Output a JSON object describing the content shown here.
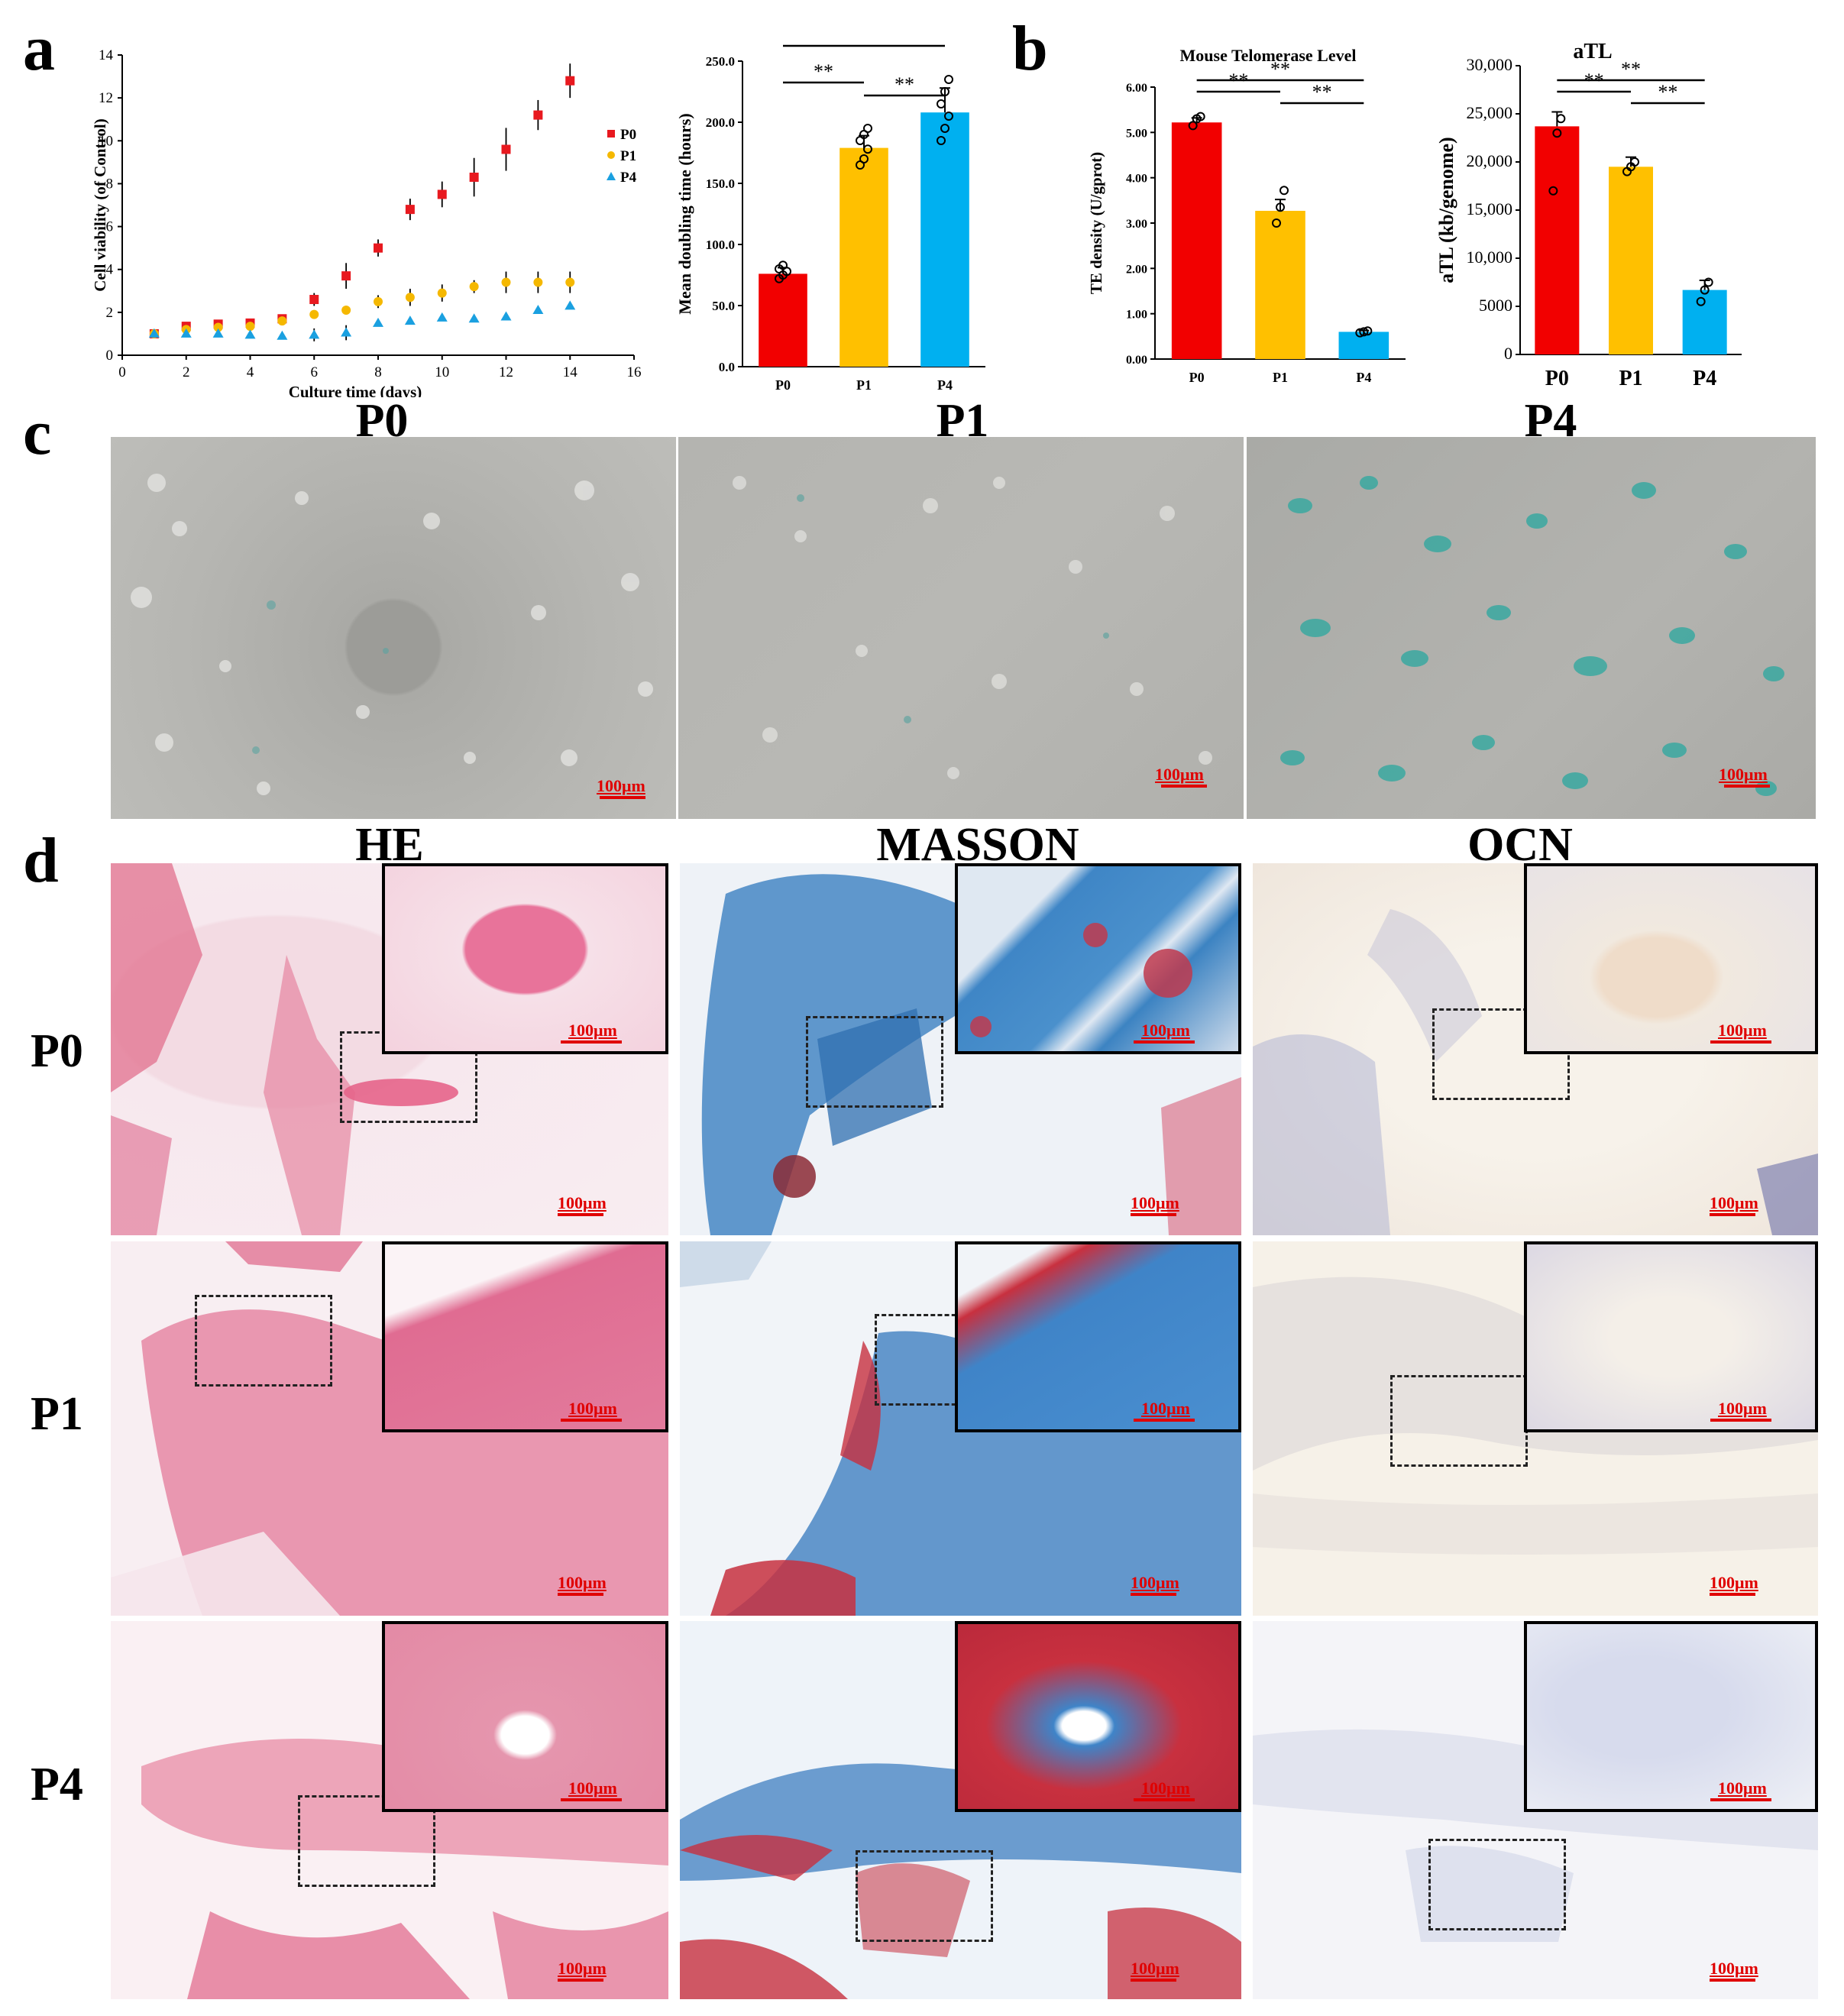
{
  "panel_letters": {
    "a": "a",
    "b": "b",
    "c": "c",
    "d": "d"
  },
  "chart_data": [
    {
      "id": "a1",
      "type": "scatter",
      "title": "",
      "xlabel": "Culture time (days)",
      "ylabel": "Cell viability (of Control)",
      "xlim": [
        0,
        16
      ],
      "ylim": [
        0,
        14
      ],
      "xticks": [
        "0",
        "2",
        "4",
        "6",
        "8",
        "10",
        "12",
        "14",
        "16"
      ],
      "yticks": [
        "0",
        "2",
        "4",
        "6",
        "8",
        "10",
        "12",
        "14"
      ],
      "legend": "right",
      "x": [
        1,
        2,
        3,
        4,
        5,
        6,
        7,
        8,
        9,
        10,
        11,
        12,
        13,
        14
      ],
      "series": [
        {
          "name": "P0",
          "color": "#e8191f",
          "marker": "square",
          "values": [
            1.0,
            1.35,
            1.45,
            1.5,
            1.7,
            2.6,
            3.7,
            5.0,
            6.8,
            7.5,
            8.3,
            9.6,
            11.2,
            12.8
          ],
          "errors": [
            0.1,
            0.15,
            0.1,
            0.15,
            0.15,
            0.3,
            0.6,
            0.4,
            0.5,
            0.6,
            0.9,
            1.0,
            0.7,
            0.8
          ]
        },
        {
          "name": "P1",
          "color": "#f5b800",
          "marker": "circle",
          "values": [
            1.0,
            1.2,
            1.3,
            1.35,
            1.6,
            1.9,
            2.1,
            2.5,
            2.7,
            2.9,
            3.2,
            3.4,
            3.4,
            3.4
          ],
          "errors": [
            0.1,
            0.1,
            0.1,
            0.15,
            0.1,
            0.2,
            0.2,
            0.3,
            0.4,
            0.4,
            0.3,
            0.5,
            0.5,
            0.5
          ]
        },
        {
          "name": "P4",
          "color": "#1aa0e0",
          "marker": "triangle",
          "values": [
            1.0,
            1.0,
            1.0,
            0.95,
            0.9,
            0.95,
            1.05,
            1.5,
            1.6,
            1.75,
            1.7,
            1.8,
            2.1,
            2.3
          ],
          "errors": [
            0.05,
            0.05,
            0.05,
            0.05,
            0.05,
            0.3,
            0.35,
            0.1,
            0.1,
            0.15,
            0.1,
            0.15,
            0.1,
            0.15
          ]
        }
      ]
    },
    {
      "id": "a2",
      "type": "bar",
      "title": "",
      "xlabel": "",
      "ylabel": "Mean doubling time (hours)",
      "categories": [
        "P0",
        "P1",
        "P4"
      ],
      "values": [
        76,
        179,
        208
      ],
      "errors": [
        5,
        10,
        20
      ],
      "points": [
        [
          72,
          75,
          78,
          80,
          83
        ],
        [
          165,
          170,
          178,
          185,
          190,
          195
        ],
        [
          185,
          195,
          205,
          215,
          225,
          235
        ]
      ],
      "colors": [
        "#f20000",
        "#ffc000",
        "#00b0f0"
      ],
      "ylim": [
        0,
        250
      ],
      "yticks": [
        "0.0",
        "50.0",
        "100.0",
        "150.0",
        "200.0",
        "250.0"
      ],
      "significance": [
        "**",
        "**",
        "**"
      ]
    },
    {
      "id": "b1",
      "type": "bar",
      "title": "Mouse Telomerase Level",
      "xlabel": "",
      "ylabel": "TE density (U/gprot)",
      "categories": [
        "P0",
        "P1",
        "P4"
      ],
      "values": [
        5.22,
        3.27,
        0.6
      ],
      "errors": [
        0.1,
        0.25,
        0.03
      ],
      "points": [
        [
          5.15,
          5.3,
          5.35
        ],
        [
          3.0,
          3.35,
          3.72
        ],
        [
          0.58,
          0.6,
          0.62
        ]
      ],
      "colors": [
        "#f20000",
        "#ffc000",
        "#00b0f0"
      ],
      "ylim": [
        0,
        6
      ],
      "yticks": [
        "0.00",
        "1.00",
        "2.00",
        "3.00",
        "4.00",
        "5.00",
        "6.00"
      ],
      "significance": [
        "**",
        "**",
        "**"
      ]
    },
    {
      "id": "b2",
      "type": "bar",
      "title": "aTL",
      "xlabel": "",
      "ylabel": "aTL (kb/genome)",
      "categories": [
        "P0",
        "P1",
        "P4"
      ],
      "values": [
        23700,
        19500,
        6700
      ],
      "errors": [
        1500,
        1000,
        1000
      ],
      "points": [
        [
          17000,
          23000,
          24500
        ],
        [
          19000,
          19500,
          20000
        ],
        [
          5500,
          6700,
          7500
        ]
      ],
      "colors": [
        "#f20000",
        "#ffc000",
        "#00b0f0"
      ],
      "ylim": [
        0,
        30000
      ],
      "yticks": [
        "0",
        "5000",
        "10,000",
        "15,000",
        "20,000",
        "25,000",
        "30,000"
      ],
      "significance": [
        "**",
        "**",
        "**"
      ]
    }
  ],
  "panel_c": {
    "headers": [
      "P0",
      "P1",
      "P4"
    ],
    "scale_labels": [
      "100μm",
      "100μm",
      "100μm"
    ]
  },
  "panel_d": {
    "column_headers": [
      "HE",
      "MASSON",
      "OCN"
    ],
    "row_labels": [
      "P0",
      "P1",
      "P4"
    ],
    "scale_label": "100μm"
  },
  "colors": {
    "P0": "#f20000",
    "P1": "#ffc000",
    "P4": "#00b0f0",
    "scale": "#e00000"
  }
}
